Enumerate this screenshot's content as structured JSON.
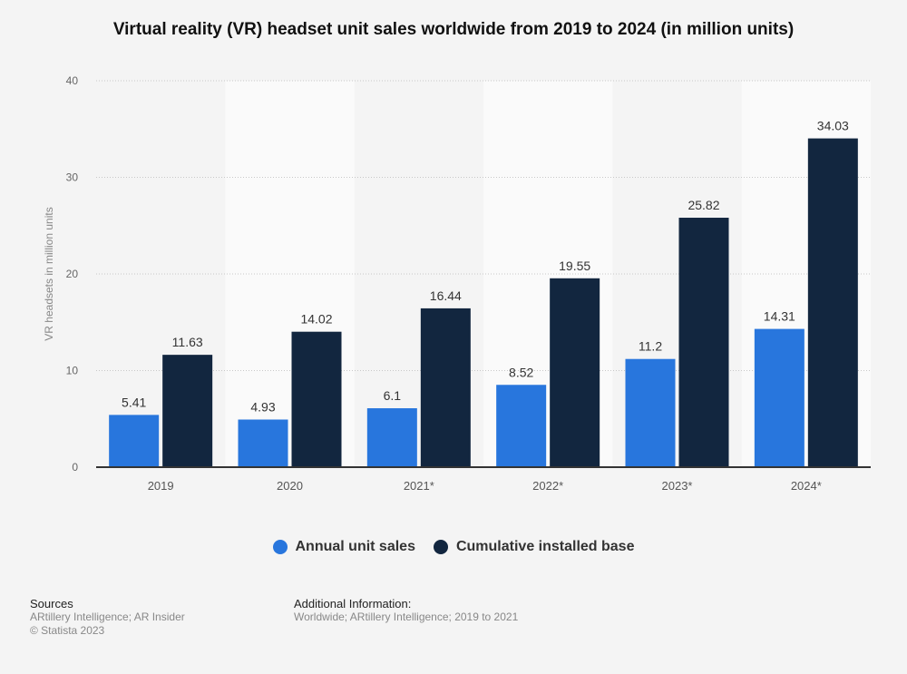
{
  "chart_data": {
    "type": "bar",
    "title": "Virtual reality (VR) headset unit sales worldwide from 2019 to 2024 (in million units)",
    "xlabel": "",
    "ylabel": "VR headsets in million units",
    "ylim": [
      0,
      40
    ],
    "yticks": [
      0,
      10,
      20,
      30,
      40
    ],
    "grid": true,
    "legend_position": "bottom",
    "categories": [
      "2019",
      "2020",
      "2021*",
      "2022*",
      "2023*",
      "2024*"
    ],
    "series": [
      {
        "name": "Annual unit sales",
        "color": "#2876dd",
        "values": [
          5.41,
          4.93,
          6.1,
          8.52,
          11.2,
          14.31
        ],
        "labels": [
          "5.41",
          "4.93",
          "6.1",
          "8.52",
          "11.2",
          "14.31"
        ]
      },
      {
        "name": "Cumulative installed base",
        "color": "#12263f",
        "values": [
          11.63,
          14.02,
          16.44,
          19.55,
          25.82,
          34.03
        ],
        "labels": [
          "11.63",
          "14.02",
          "16.44",
          "19.55",
          "25.82",
          "34.03"
        ]
      }
    ]
  },
  "footer": {
    "sources_heading": "Sources",
    "sources_text": "ARtillery Intelligence; AR Insider",
    "copyright": "© Statista 2023",
    "additional_heading": "Additional Information:",
    "additional_text": "Worldwide; ARtillery Intelligence; 2019 to 2021"
  }
}
